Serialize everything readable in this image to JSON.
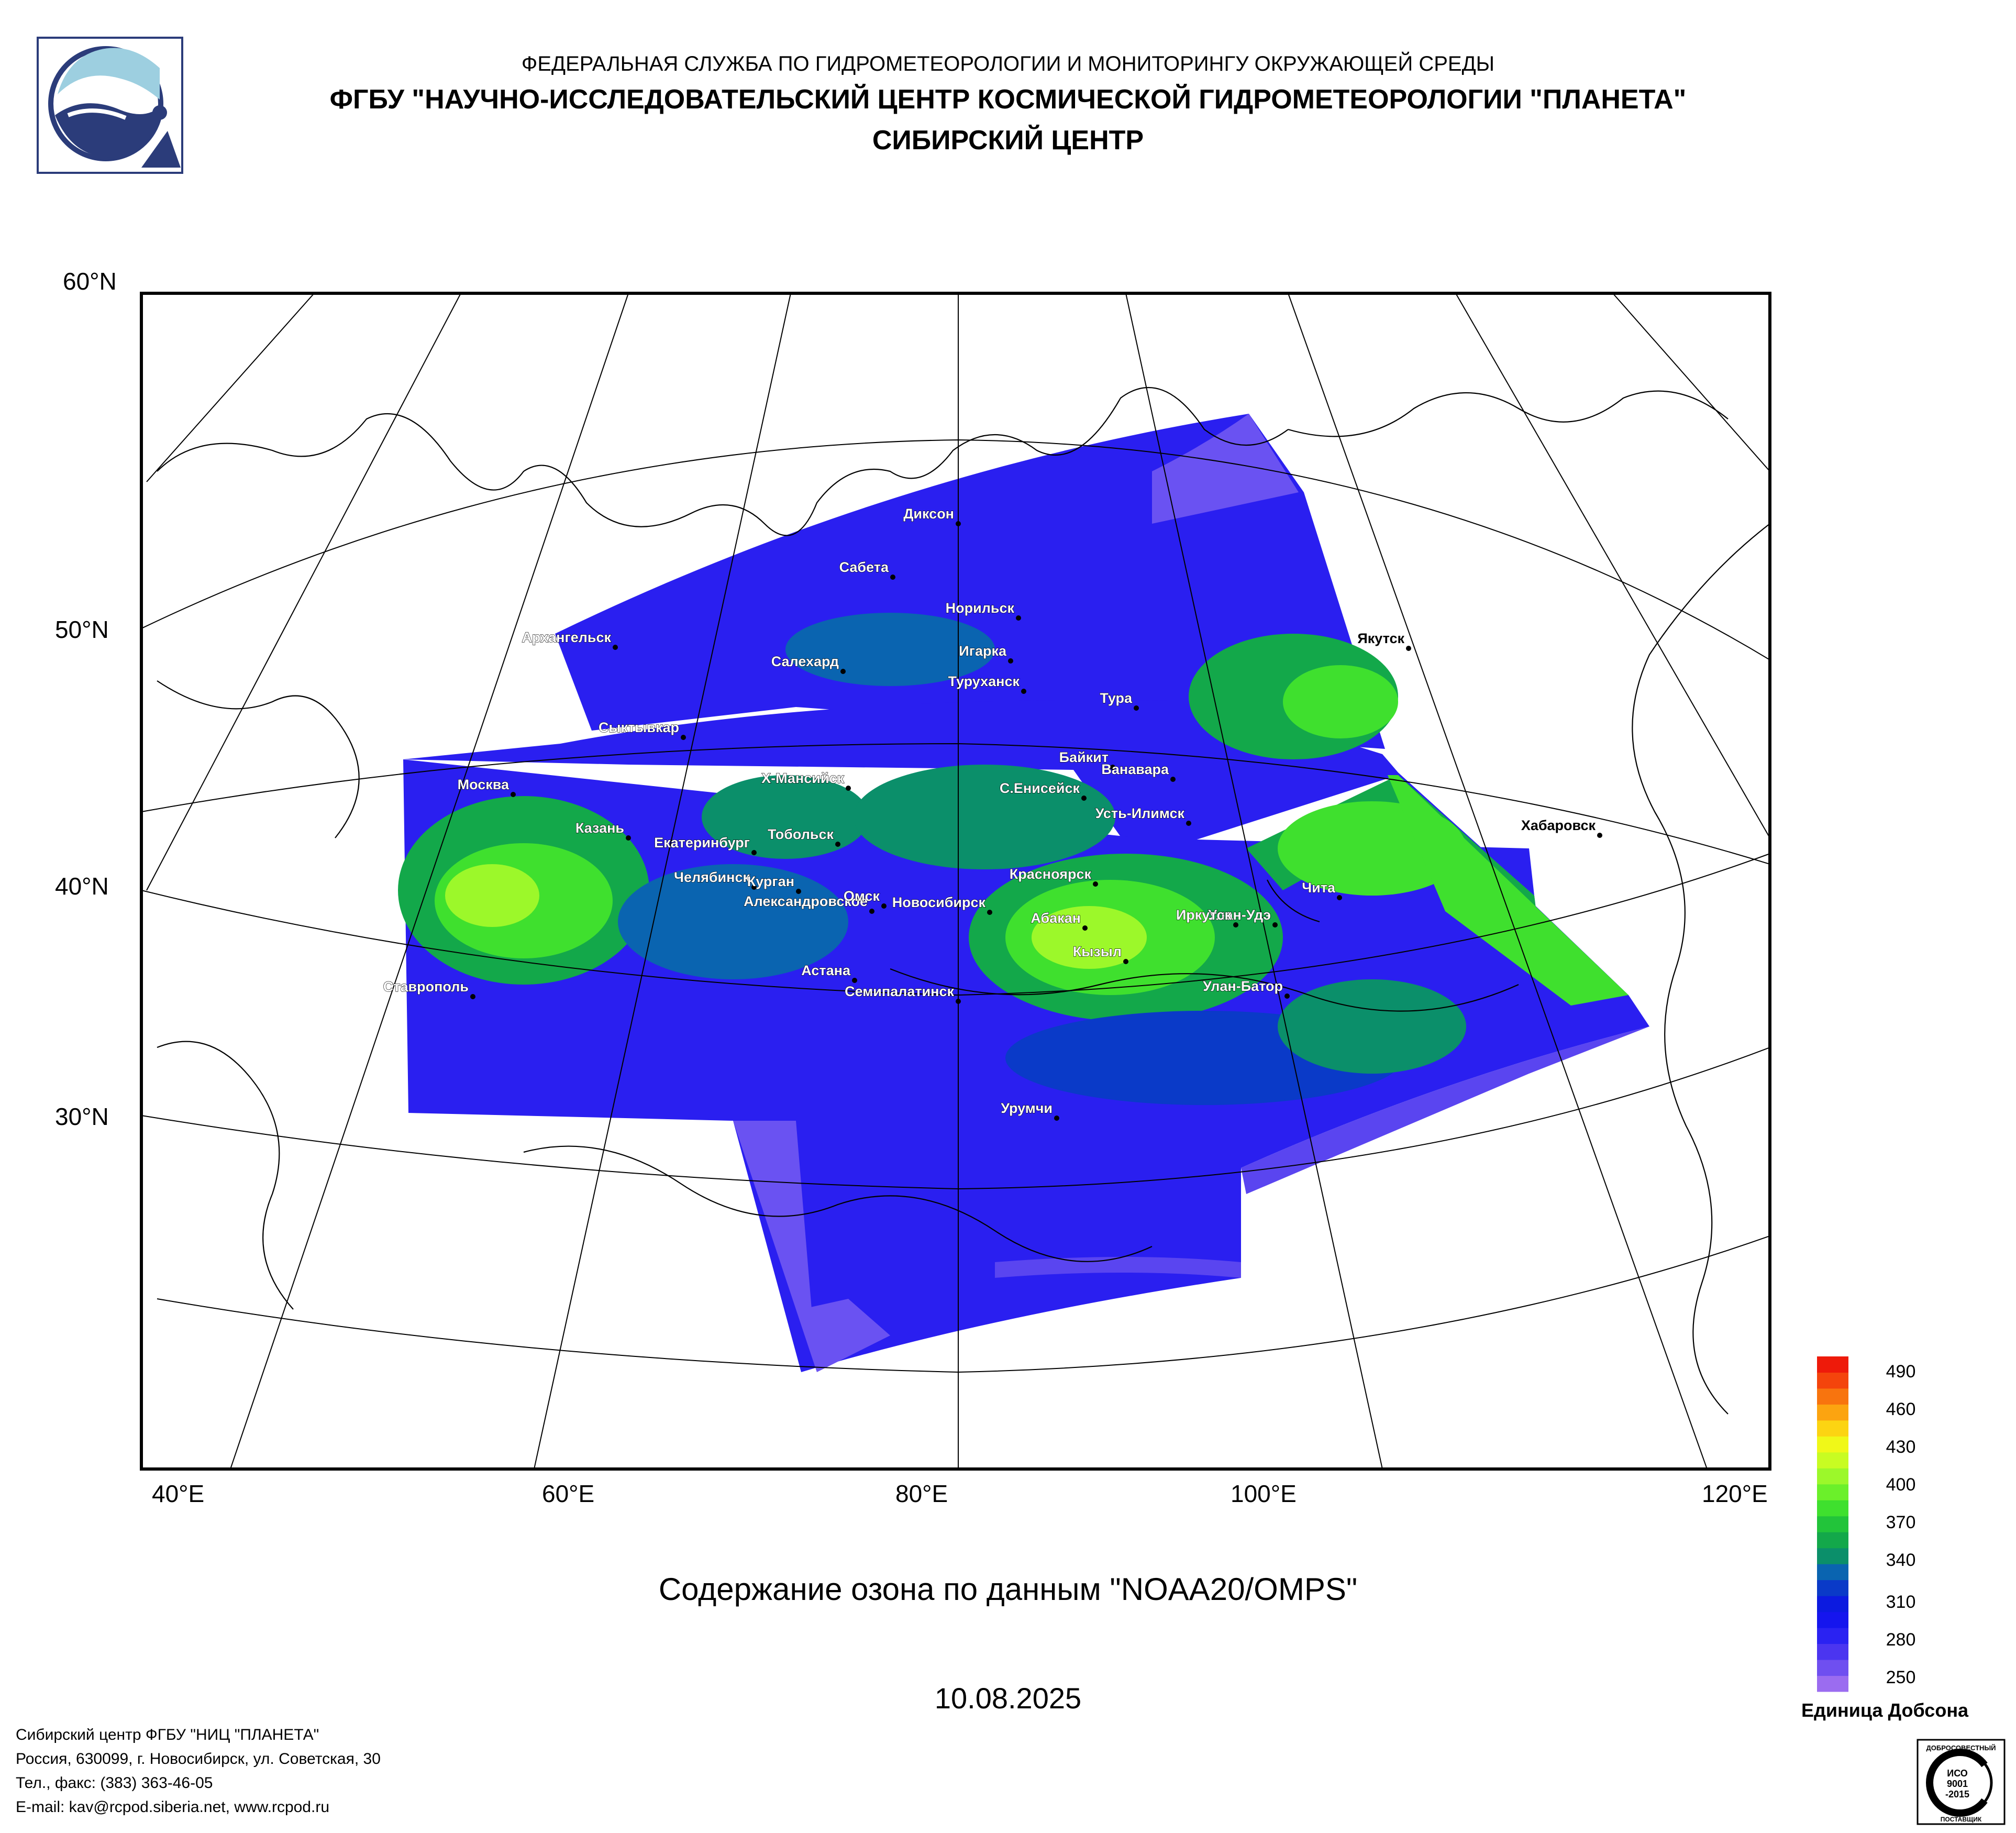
{
  "header": {
    "line1": "ФЕДЕРАЛЬНАЯ СЛУЖБА ПО ГИДРОМЕТЕОРОЛОГИИ И МОНИТОРИНГУ ОКРУЖАЮЩЕЙ СРЕДЫ",
    "line2": "ФГБУ \"НАУЧНО-ИССЛЕДОВАТЕЛЬСКИЙ ЦЕНТР КОСМИЧЕСКОЙ ГИДРОМЕТЕОРОЛОГИИ \"ПЛАНЕТА\"",
    "line3": "СИБИРСКИЙ ЦЕНТР"
  },
  "map": {
    "lat_labels": [
      "60°N",
      "50°N",
      "40°N",
      "30°N"
    ],
    "lon_labels": [
      "40°E",
      "60°E",
      "80°E",
      "100°E",
      "120°E"
    ],
    "cities": [
      "Диксон",
      "Сабета",
      "Норильск",
      "Игарка",
      "Салехард",
      "Туруханск",
      "Архангельск",
      "Якутск",
      "Тура",
      "Сыктывкар",
      "Байкит",
      "Ванавара",
      "Х-Мансийск",
      "С.Енисейск",
      "Москва",
      "Усть-Илимск",
      "Казань",
      "Тобольск",
      "Екатеринбург",
      "Хабаровск",
      "Челябинск",
      "Красноярск",
      "Александровское",
      "Курган",
      "Омск",
      "Чита",
      "Новосибирск",
      "Абакан",
      "Улан-Удэ",
      "Иркутск",
      "Кызыл",
      "Астана",
      "Ставрополь",
      "Семипалатинск",
      "Улан-Батор",
      "Урумчи"
    ],
    "title": "Содержание озона по данным \"NOAA20/OMPS\"",
    "date": "10.08.2025"
  },
  "legend": {
    "unit": "Единица Добсона",
    "ticks": [
      "490",
      "460",
      "430",
      "400",
      "370",
      "340",
      "310",
      "280",
      "250"
    ],
    "colors": [
      "#9b6cf0",
      "#6f4ff0",
      "#4b35f0",
      "#2a22f2",
      "#1515ee",
      "#0c1ae0",
      "#0a3ac8",
      "#0a64b0",
      "#0b8f6a",
      "#13a84a",
      "#22c43a",
      "#3fe02e",
      "#6bf02a",
      "#9cf82a",
      "#c8fc22",
      "#f0f818",
      "#fcd412",
      "#fca410",
      "#f8740e",
      "#f4440c",
      "#ee1a0a"
    ]
  },
  "footer": {
    "line1": "Сибирский центр ФГБУ \"НИЦ \"ПЛАНЕТА\"",
    "line2": "Россия, 630099, г. Новосибирск, ул. Советская, 30",
    "line3": "Тел., факс: (383) 363-46-05",
    "line4": "E-mail: kav@rcpod.siberia.net, www.rcpod.ru"
  },
  "cert": {
    "top": "ДОБРОСОВЕСТНЫЙ",
    "line1": "ИСО",
    "line2": "9001",
    "line3": "-2015",
    "bottom": "ПОСТАВЩИК"
  },
  "colors": {
    "ozone_low": "#2a1ff0",
    "ozone_mid": "#18b14a",
    "ozone_high": "#9cf82a",
    "frame": "#000000"
  }
}
